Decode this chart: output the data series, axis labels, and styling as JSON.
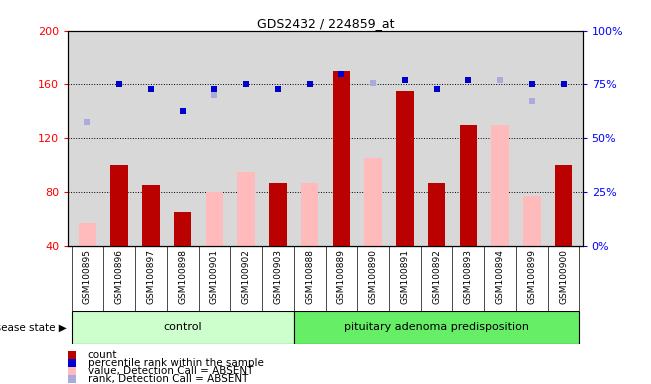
{
  "title": "GDS2432 / 224859_at",
  "samples": [
    "GSM100895",
    "GSM100896",
    "GSM100897",
    "GSM100898",
    "GSM100901",
    "GSM100902",
    "GSM100903",
    "GSM100888",
    "GSM100889",
    "GSM100890",
    "GSM100891",
    "GSM100892",
    "GSM100893",
    "GSM100894",
    "GSM100899",
    "GSM100900"
  ],
  "control_count": 7,
  "count_values": [
    null,
    100,
    85,
    65,
    null,
    null,
    87,
    null,
    170,
    null,
    155,
    87,
    130,
    null,
    null,
    100
  ],
  "value_absent": [
    57,
    null,
    null,
    null,
    80,
    95,
    null,
    87,
    null,
    105,
    null,
    null,
    null,
    130,
    77,
    null
  ],
  "percentile_rank": [
    null,
    160,
    157,
    140,
    157,
    160,
    157,
    160,
    168,
    161,
    163,
    157,
    163,
    163,
    160,
    160
  ],
  "rank_absent": [
    132,
    null,
    null,
    null,
    152,
    null,
    null,
    null,
    null,
    161,
    null,
    null,
    null,
    163,
    148,
    null
  ],
  "ylim": [
    40,
    200
  ],
  "yticks": [
    40,
    80,
    120,
    160,
    200
  ],
  "y2ticks": [
    0,
    25,
    50,
    75,
    100
  ],
  "bar_color": "#bb0000",
  "value_absent_color": "#ffbbbb",
  "percentile_color": "#0000cc",
  "rank_absent_color": "#aaaadd",
  "control_bg": "#ccffcc",
  "adenoma_bg": "#66ee66",
  "plot_bg": "#d8d8d8",
  "grid_dotted_color": "#000000"
}
